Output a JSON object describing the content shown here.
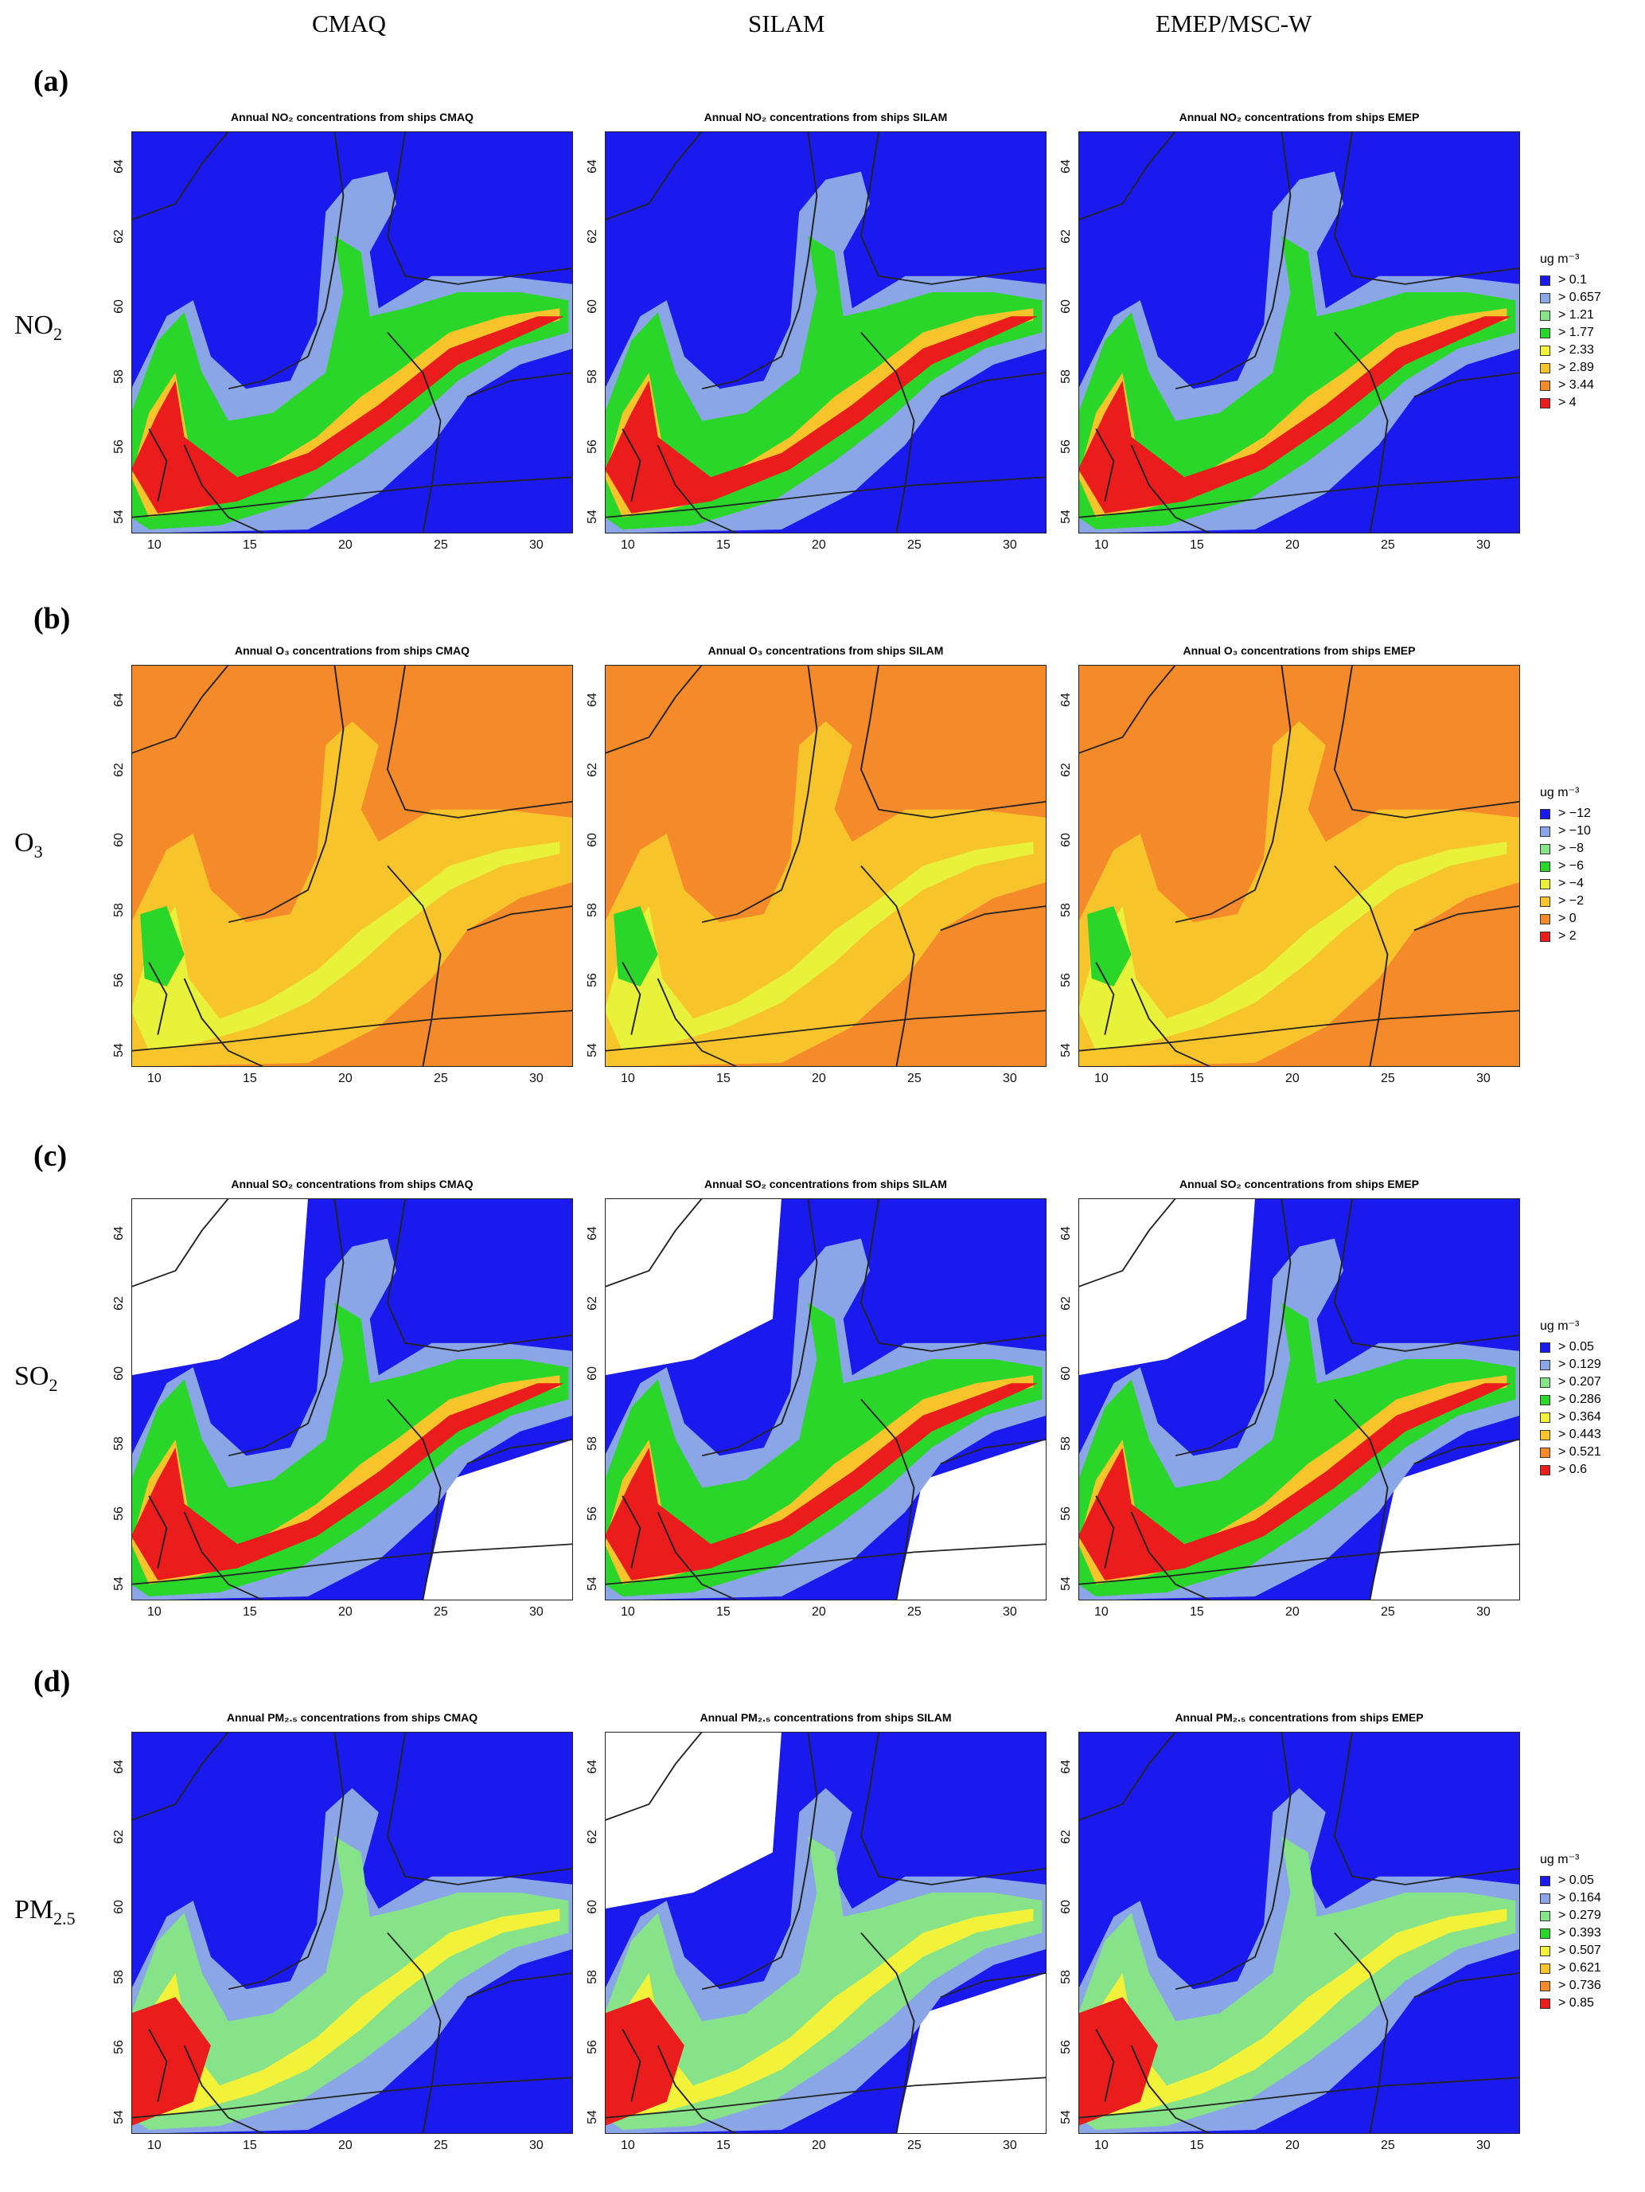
{
  "column_headers": [
    "CMAQ",
    "SILAM",
    "EMEP/MSC-W"
  ],
  "x_ticks": [
    "10",
    "15",
    "20",
    "25",
    "30"
  ],
  "y_ticks": [
    "54",
    "56",
    "58",
    "60",
    "62",
    "64"
  ],
  "rows": [
    {
      "letter": "(a)",
      "species_main": "NO",
      "species_sub": "2",
      "unit": "ug m⁻³",
      "legend": [
        {
          "label": "> 0.1",
          "color": "#1a1aef"
        },
        {
          "label": "> 0.657",
          "color": "#8aa6e6"
        },
        {
          "label": "> 1.21",
          "color": "#86e38a"
        },
        {
          "label": "> 1.77",
          "color": "#2bd62b"
        },
        {
          "label": "> 2.33",
          "color": "#f2f23a"
        },
        {
          "label": "> 2.89",
          "color": "#f7c52b"
        },
        {
          "label": "> 3.44",
          "color": "#f58a2a"
        },
        {
          "label": "> 4",
          "color": "#ea1c1c"
        }
      ],
      "titles": [
        "Annual NO₂ concentrations from ships CMAQ",
        "Annual NO₂ concentrations from ships SILAM",
        "Annual NO₂ concentrations from ships EMEP"
      ]
    },
    {
      "letter": "(b)",
      "species_main": "O",
      "species_sub": "3",
      "unit": "ug m⁻³",
      "legend": [
        {
          "label": "> −12",
          "color": "#1a1aef"
        },
        {
          "label": "> −10",
          "color": "#8aa6e6"
        },
        {
          "label": "> −8",
          "color": "#86e38a"
        },
        {
          "label": "> −6",
          "color": "#2bd62b"
        },
        {
          "label": "> −4",
          "color": "#e9f23a"
        },
        {
          "label": "> −2",
          "color": "#f7c52b"
        },
        {
          "label": "> 0",
          "color": "#f58a2a"
        },
        {
          "label": "> 2",
          "color": "#ea1c1c"
        }
      ],
      "titles": [
        "Annual O₃ concentrations from ships CMAQ",
        "Annual O₃ concentrations from ships SILAM",
        "Annual O₃ concentrations from ships EMEP"
      ]
    },
    {
      "letter": "(c)",
      "species_main": "SO",
      "species_sub": "2",
      "unit": "ug m⁻³",
      "legend": [
        {
          "label": "> 0.05",
          "color": "#1a1aef"
        },
        {
          "label": "> 0.129",
          "color": "#8aa6e6"
        },
        {
          "label": "> 0.207",
          "color": "#86e38a"
        },
        {
          "label": "> 0.286",
          "color": "#2bd62b"
        },
        {
          "label": "> 0.364",
          "color": "#f2f23a"
        },
        {
          "label": "> 0.443",
          "color": "#f7c52b"
        },
        {
          "label": "> 0.521",
          "color": "#f58a2a"
        },
        {
          "label": "> 0.6",
          "color": "#ea1c1c"
        }
      ],
      "titles": [
        "Annual SO₂ concentrations from ships CMAQ",
        "Annual SO₂ concentrations from ships SILAM",
        "Annual SO₂ concentrations from ships EMEP"
      ]
    },
    {
      "letter": "(d)",
      "species_main": "PM",
      "species_sub": "2.5",
      "unit": "ug m⁻³",
      "legend": [
        {
          "label": "> 0.05",
          "color": "#1a1aef"
        },
        {
          "label": "> 0.164",
          "color": "#8aa6e6"
        },
        {
          "label": "> 0.279",
          "color": "#86e38a"
        },
        {
          "label": "> 0.393",
          "color": "#2bd62b"
        },
        {
          "label": "> 0.507",
          "color": "#f2f23a"
        },
        {
          "label": "> 0.621",
          "color": "#f7c52b"
        },
        {
          "label": "> 0.736",
          "color": "#f58a2a"
        },
        {
          "label": "> 0.85",
          "color": "#ea1c1c"
        }
      ],
      "titles": [
        "Annual PM₂.₅ concentrations from ships CMAQ",
        "Annual PM₂.₅ concentrations from ships SILAM",
        "Annual PM₂.₅ concentrations from ships EMEP"
      ]
    }
  ]
}
